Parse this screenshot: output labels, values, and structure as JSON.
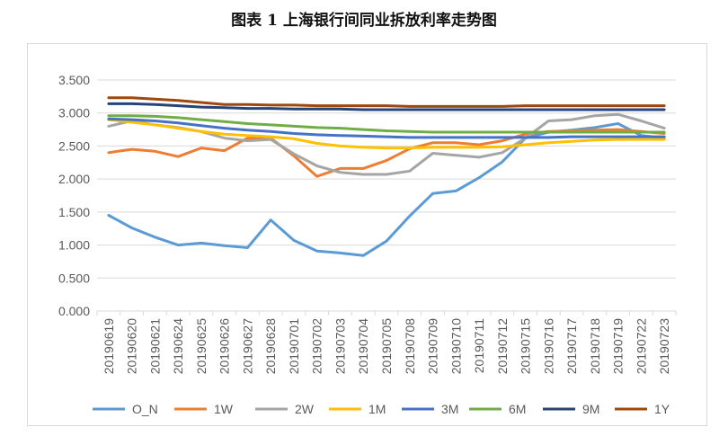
{
  "title": "图表 1  上海银行间同业拆放利率走势图",
  "chart_data": {
    "type": "line",
    "title": "图表 1  上海银行间同业拆放利率走势图",
    "xlabel": "",
    "ylabel": "",
    "ylim": [
      0,
      3.5
    ],
    "yticks": [
      "0.000",
      "0.500",
      "1.000",
      "1.500",
      "2.000",
      "2.500",
      "3.000",
      "3.500"
    ],
    "grid": "horizontal",
    "legend": "bottom",
    "categories": [
      "20190619",
      "20190620",
      "20190621",
      "20190624",
      "20190625",
      "20190626",
      "20190627",
      "20190628",
      "20190701",
      "20190702",
      "20190703",
      "20190704",
      "20190705",
      "20190708",
      "20190709",
      "20190710",
      "20190711",
      "20190712",
      "20190715",
      "20190716",
      "20190717",
      "20190718",
      "20190719",
      "20190722",
      "20190723"
    ],
    "series": [
      {
        "name": "O_N",
        "color": "#5b9bd5",
        "values": [
          1.45,
          1.26,
          1.12,
          1.0,
          1.03,
          0.99,
          0.96,
          1.38,
          1.07,
          0.91,
          0.88,
          0.84,
          1.06,
          1.44,
          1.78,
          1.82,
          2.02,
          2.26,
          2.62,
          2.71,
          2.74,
          2.78,
          2.84,
          2.66,
          2.62
        ]
      },
      {
        "name": "1W",
        "color": "#ed7d31",
        "values": [
          2.4,
          2.45,
          2.42,
          2.34,
          2.47,
          2.43,
          2.62,
          2.62,
          2.35,
          2.04,
          2.16,
          2.16,
          2.28,
          2.46,
          2.55,
          2.55,
          2.52,
          2.58,
          2.68,
          2.72,
          2.73,
          2.74,
          2.75,
          2.72,
          2.69
        ]
      },
      {
        "name": "2W",
        "color": "#a5a5a5",
        "values": [
          2.8,
          2.88,
          2.82,
          2.78,
          2.72,
          2.62,
          2.58,
          2.6,
          2.38,
          2.2,
          2.1,
          2.07,
          2.07,
          2.12,
          2.39,
          2.36,
          2.33,
          2.4,
          2.62,
          2.88,
          2.9,
          2.96,
          2.98,
          2.88,
          2.77
        ]
      },
      {
        "name": "1M",
        "color": "#ffc000",
        "values": [
          2.9,
          2.86,
          2.82,
          2.77,
          2.72,
          2.68,
          2.66,
          2.64,
          2.61,
          2.54,
          2.5,
          2.48,
          2.47,
          2.47,
          2.48,
          2.48,
          2.48,
          2.49,
          2.52,
          2.55,
          2.57,
          2.59,
          2.6,
          2.6,
          2.6
        ]
      },
      {
        "name": "3M",
        "color": "#4472c4",
        "values": [
          2.91,
          2.9,
          2.88,
          2.85,
          2.81,
          2.77,
          2.74,
          2.72,
          2.69,
          2.67,
          2.66,
          2.65,
          2.64,
          2.63,
          2.63,
          2.63,
          2.63,
          2.63,
          2.63,
          2.63,
          2.64,
          2.64,
          2.64,
          2.64,
          2.64
        ]
      },
      {
        "name": "6M",
        "color": "#70ad47",
        "values": [
          2.96,
          2.96,
          2.95,
          2.93,
          2.9,
          2.87,
          2.84,
          2.82,
          2.8,
          2.78,
          2.77,
          2.75,
          2.73,
          2.72,
          2.71,
          2.71,
          2.71,
          2.71,
          2.71,
          2.71,
          2.71,
          2.71,
          2.71,
          2.71,
          2.71
        ]
      },
      {
        "name": "9M",
        "color": "#264478",
        "values": [
          3.14,
          3.14,
          3.13,
          3.11,
          3.09,
          3.08,
          3.07,
          3.07,
          3.06,
          3.06,
          3.06,
          3.05,
          3.05,
          3.05,
          3.05,
          3.05,
          3.05,
          3.05,
          3.05,
          3.05,
          3.05,
          3.05,
          3.05,
          3.05,
          3.05
        ]
      },
      {
        "name": "1Y",
        "color": "#9e480e",
        "values": [
          3.23,
          3.23,
          3.21,
          3.19,
          3.16,
          3.13,
          3.13,
          3.12,
          3.12,
          3.11,
          3.11,
          3.11,
          3.11,
          3.1,
          3.1,
          3.1,
          3.1,
          3.1,
          3.11,
          3.11,
          3.11,
          3.11,
          3.11,
          3.11,
          3.11
        ]
      }
    ]
  }
}
